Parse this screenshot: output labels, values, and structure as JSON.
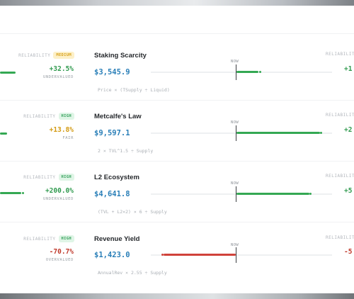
{
  "labels": {
    "reliability": "RELIABILITY",
    "now": "NOW"
  },
  "colors": {
    "green": "#34a853",
    "red": "#d0423a",
    "blue": "#2a7fb8",
    "amber": "#d39a12"
  },
  "rows": [
    {
      "left_reliability": "MEDIUM",
      "left_pct": "+32.5%",
      "left_status": "UNDERVALUED",
      "model": "Staking Scarcity",
      "price": "$3,545.9",
      "formula": "Price × (TSupply ÷ Liquid)",
      "bar_fraction": 0.12,
      "bar_direction": "right",
      "right_pct": "+1"
    },
    {
      "left_reliability": "HIGH",
      "left_pct": "+13.8%",
      "left_status": "FAIR",
      "model": "Metcalfe's Law",
      "price": "$9,597.1",
      "formula": "2 × TVL^1.5 ÷ Supply",
      "bar_fraction": 0.49,
      "bar_direction": "right",
      "right_pct": "+2"
    },
    {
      "left_reliability": "HIGH",
      "left_pct": "+200.0%",
      "left_status": "UNDERVALUED",
      "model": "L2 Ecosystem",
      "price": "$4,641.8",
      "formula": "(TVL + L2×2) × 6 ÷ Supply",
      "bar_fraction": 0.43,
      "bar_direction": "right",
      "right_pct": "+5"
    },
    {
      "left_reliability": "HIGH",
      "left_pct": "-70.7%",
      "left_status": "OVERVALUED",
      "model": "Revenue Yield",
      "price": "$1,423.0",
      "formula": "AnnualRev × 2.55 ÷ Supply",
      "bar_fraction": 0.41,
      "bar_direction": "left",
      "right_pct": "-5"
    }
  ]
}
